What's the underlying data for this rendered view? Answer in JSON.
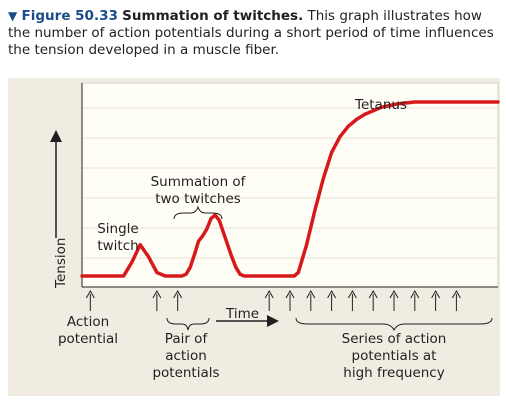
{
  "caption": {
    "figure_label": "Figure 50.33",
    "title": "Summation of twitches.",
    "body": "This graph illustrates how the number of action potentials during a short period of time influences the tension developed in a muscle fiber."
  },
  "colors": {
    "curve": "#d7191c",
    "plot_bg": "#fffef6",
    "panel_bg": "#f1ece2",
    "figure_label": "#1a4c8c"
  },
  "chart_data": {
    "type": "line",
    "title": "",
    "xlabel": "Time",
    "ylabel": "Tension",
    "xlim": [
      0,
      100
    ],
    "ylim": [
      0,
      100
    ],
    "grid": true,
    "series": [
      {
        "x": [
          0,
          8,
          10,
          12,
          14,
          16,
          18,
          20,
          24,
          25,
          26,
          27,
          28,
          29,
          30,
          31,
          32,
          33,
          34,
          35,
          36,
          37,
          38,
          39,
          40,
          41,
          42,
          43,
          44,
          45,
          46,
          47,
          48,
          51,
          52,
          54,
          56,
          58,
          60,
          62,
          64,
          66,
          68,
          70,
          72,
          74,
          76,
          78,
          80,
          82,
          84,
          86,
          88,
          90,
          92,
          94,
          96,
          98,
          100
        ],
        "y": [
          0,
          0,
          0,
          8,
          18,
          11,
          2,
          0,
          0,
          1,
          5,
          12,
          20,
          23,
          27,
          33,
          35,
          32,
          25,
          18,
          11,
          5,
          1,
          0,
          0,
          0,
          0,
          0,
          0,
          0,
          0,
          0,
          0,
          0,
          2,
          18,
          38,
          56,
          71,
          80,
          86,
          90,
          93,
          95,
          97,
          98,
          99,
          99.5,
          100,
          100,
          100,
          100,
          100,
          100,
          100,
          100,
          100,
          100,
          100
        ]
      }
    ],
    "annotations": {
      "single_twitch": "Single twitch",
      "summation": "Summation of two twitches",
      "tetanus": "Tetanus",
      "action_potential": "Action potential",
      "pair": "Pair of action potentials",
      "series": "Series of action potentials at high frequency"
    },
    "action_potential_arrows_x": [
      2,
      18,
      23,
      45,
      50,
      55,
      60,
      65,
      70,
      75,
      80,
      85,
      90
    ]
  }
}
